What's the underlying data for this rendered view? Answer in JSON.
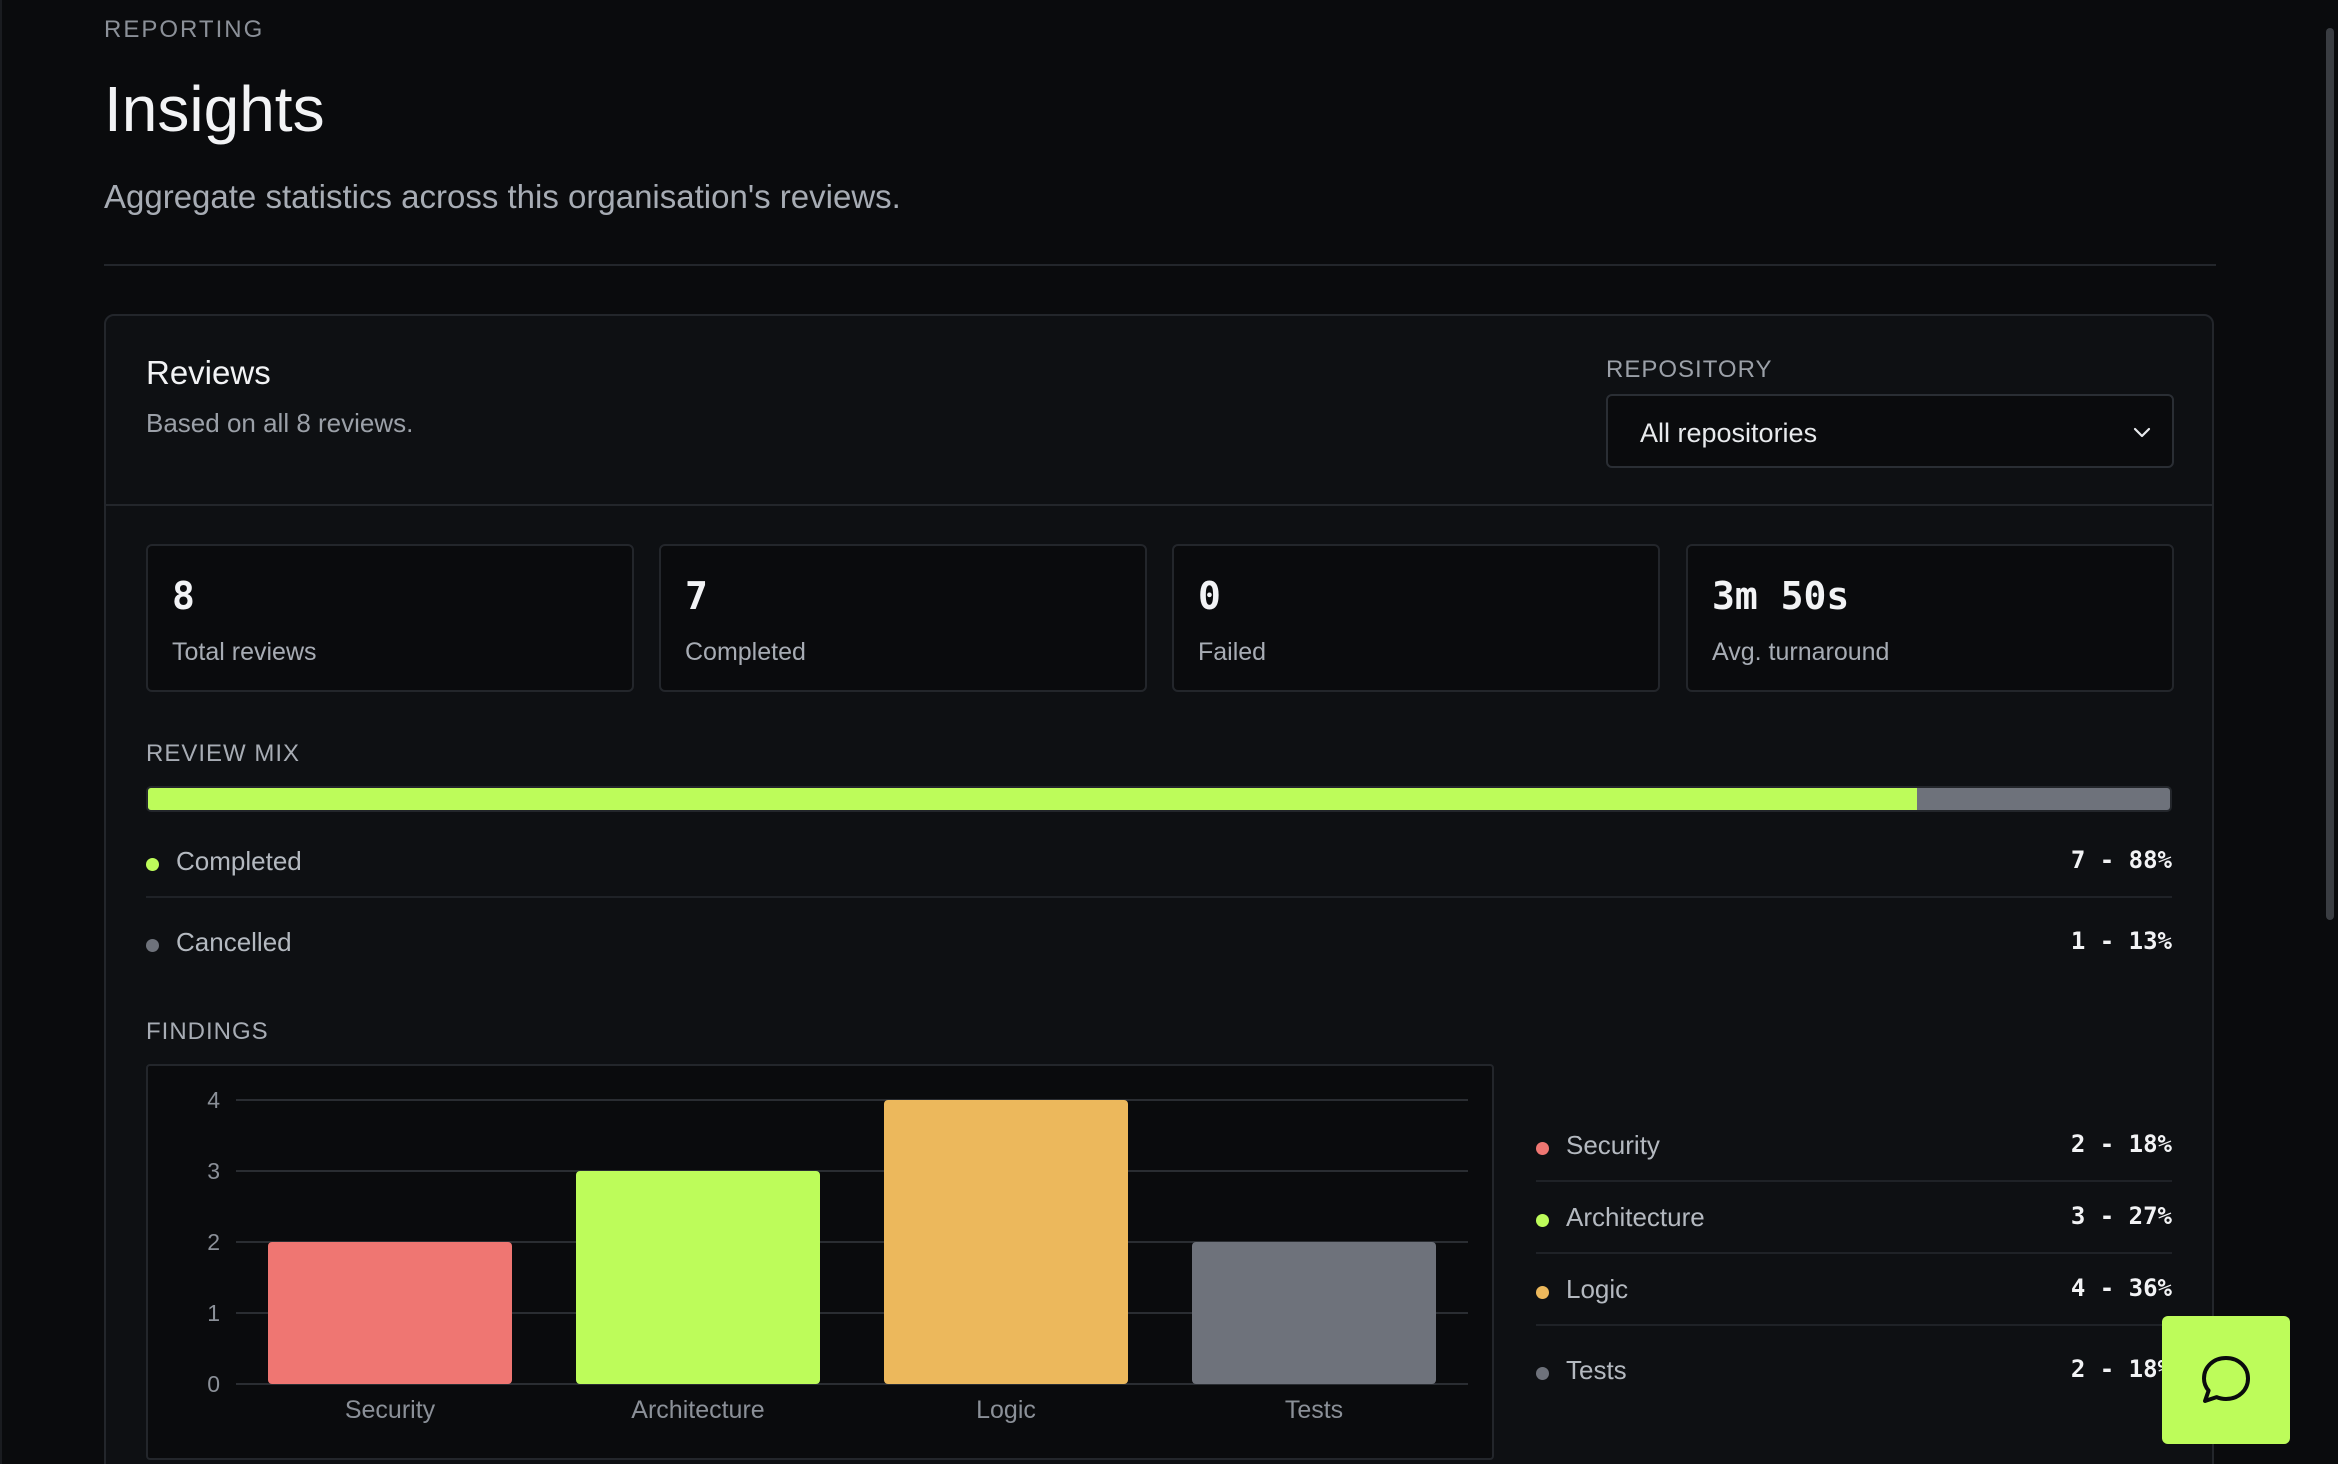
{
  "header": {
    "eyebrow": "REPORTING",
    "title": "Insights",
    "subtitle": "Aggregate statistics across this organisation's reviews."
  },
  "reviews_card": {
    "title": "Reviews",
    "subtitle": "Based on all 8 reviews.",
    "repository_label": "REPOSITORY",
    "repository_selected": "All repositories"
  },
  "stats": [
    {
      "value": "8",
      "label": "Total reviews"
    },
    {
      "value": "7",
      "label": "Completed"
    },
    {
      "value": "0",
      "label": "Failed"
    },
    {
      "value": "3m 50s",
      "label": "Avg. turnaround"
    }
  ],
  "review_mix": {
    "label": "REVIEW MIX",
    "completed_fraction": 0.875,
    "items": [
      {
        "label": "Completed",
        "value": "7 - 88%",
        "color": "#bdfc5a"
      },
      {
        "label": "Cancelled",
        "value": "1 - 13%",
        "color": "#6e727b"
      }
    ]
  },
  "findings": {
    "label": "FINDINGS",
    "items": [
      {
        "label": "Security",
        "value": "2 - 18%",
        "color": "#ef7672"
      },
      {
        "label": "Architecture",
        "value": "3 - 27%",
        "color": "#bdfc5a"
      },
      {
        "label": "Logic",
        "value": "4 - 36%",
        "color": "#ecb85c"
      },
      {
        "label": "Tests",
        "value": "2 - 18%",
        "color": "#6e727b"
      }
    ]
  },
  "chart_data": {
    "type": "bar",
    "categories": [
      "Security",
      "Architecture",
      "Logic",
      "Tests"
    ],
    "values": [
      2,
      3,
      4,
      2
    ],
    "colors": [
      "#ef7672",
      "#bdfc5a",
      "#ecb85c",
      "#6e727b"
    ],
    "yticks": [
      0,
      1,
      2,
      3,
      4
    ],
    "ylim": [
      0,
      4
    ],
    "grid": true,
    "title": "",
    "xlabel": "",
    "ylabel": ""
  },
  "chat": {
    "icon": "chat-bubble-icon"
  }
}
